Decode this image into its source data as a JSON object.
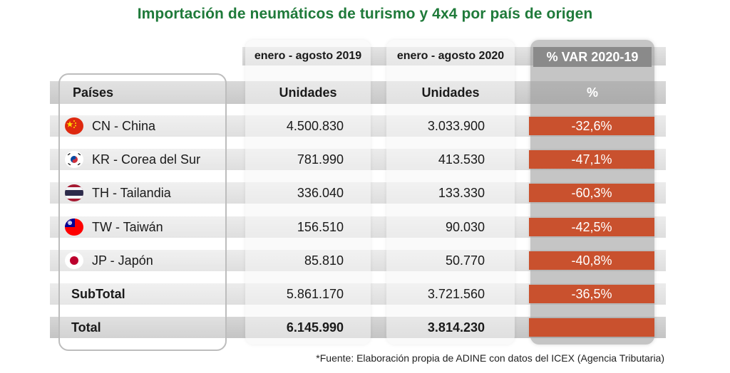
{
  "title": "Importación de neumáticos de turismo y 4x4 por país de origen",
  "columns": {
    "period_1": "enero - agosto 2019",
    "period_2": "enero - agosto 2020",
    "variation": "% VAR 2020-19",
    "countries_header": "Países",
    "units_1": "Unidades",
    "units_2": "Unidades",
    "pct_header": "%"
  },
  "rows": [
    {
      "country": "CN - China",
      "flag": "china-flag",
      "v2019": "4.500.830",
      "v2020": "3.033.900",
      "var": "-32,6%"
    },
    {
      "country": "KR - Corea del Sur",
      "flag": "south-korea-flag",
      "v2019": "781.990",
      "v2020": "413.530",
      "var": "-47,1%"
    },
    {
      "country": "TH - Tailandia",
      "flag": "thailand-flag",
      "v2019": "336.040",
      "v2020": "133.330",
      "var": "-60,3%"
    },
    {
      "country": "TW - Taiwán",
      "flag": "taiwan-flag",
      "v2019": "156.510",
      "v2020": "90.030",
      "var": "-42,5%"
    },
    {
      "country": "JP - Japón",
      "flag": "japan-flag",
      "v2019": "85.810",
      "v2020": "50.770",
      "var": "-40,8%"
    }
  ],
  "subtotal": {
    "label": "SubTotal",
    "v2019": "5.861.170",
    "v2020": "3.721.560",
    "var": "-36,5%"
  },
  "total": {
    "label": "Total",
    "v2019": "6.145.990",
    "v2020": "3.814.230",
    "var": ""
  },
  "source": "*Fuente: Elaboración propia de ADINE con datos del ICEX (Agencia Tributaria)",
  "colors": {
    "title": "#1f7a3a",
    "negative_cell": "#c9512e",
    "variation_header": "#8a8a8a"
  },
  "chart_data": {
    "type": "table",
    "title": "Importación de neumáticos de turismo y 4x4 por país de origen",
    "headers": [
      "Países",
      "enero - agosto 2019 Unidades",
      "enero - agosto 2020 Unidades",
      "% VAR 2020-19 %"
    ],
    "rows": [
      [
        "CN - China",
        4500830,
        3033900,
        -32.6
      ],
      [
        "KR - Corea del Sur",
        781990,
        413530,
        -47.1
      ],
      [
        "TH - Tailandia",
        336040,
        133330,
        -60.3
      ],
      [
        "TW - Taiwán",
        156510,
        90030,
        -42.5
      ],
      [
        "JP - Japón",
        85810,
        50770,
        -40.8
      ],
      [
        "SubTotal",
        5861170,
        3721560,
        -36.5
      ],
      [
        "Total",
        6145990,
        3814230,
        null
      ]
    ]
  }
}
